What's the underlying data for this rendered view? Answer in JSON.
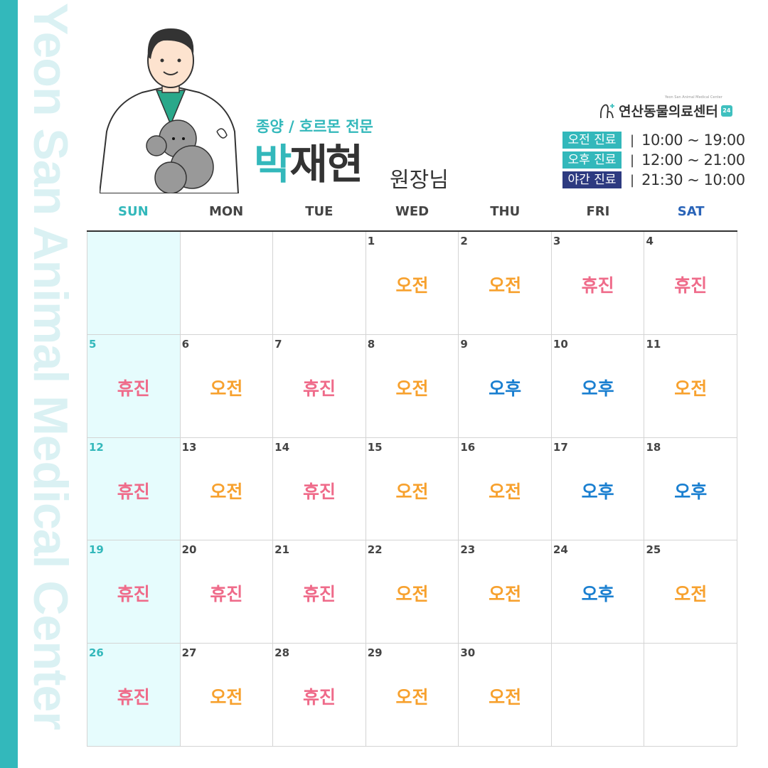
{
  "side_text": "Yeon San Animal Medical Center",
  "header": {
    "specialty": "종양 / 호르몬 전문",
    "name_first": "박",
    "name_rest": "재현",
    "title": "원장님"
  },
  "logo": {
    "small_text": "Yeon San Animal Medical Center",
    "name": "연산동물의료센터",
    "badge": "24"
  },
  "hours": [
    {
      "label": "오전 진료",
      "sep": "|",
      "time": "10:00 ~ 19:00",
      "color": "#33b8bb"
    },
    {
      "label": "오후 진료",
      "sep": "|",
      "time": "12:00 ~ 21:00",
      "color": "#33b8bb"
    },
    {
      "label": "야간 진료",
      "sep": "|",
      "time": "21:30 ~ 10:00",
      "color": "#2d3a80"
    }
  ],
  "weekdays": [
    "SUN",
    "MON",
    "TUE",
    "WED",
    "THU",
    "FRI",
    "SAT"
  ],
  "colors": {
    "am": "#f7a12e",
    "off": "#ef6b8a",
    "pm": "#1a7fd0",
    "accent": "#33b8bb"
  },
  "weeks": [
    [
      {
        "d": "",
        "s": ""
      },
      {
        "d": "",
        "s": ""
      },
      {
        "d": "",
        "s": ""
      },
      {
        "d": "1",
        "s": "오전"
      },
      {
        "d": "2",
        "s": "오전"
      },
      {
        "d": "3",
        "s": "휴진"
      },
      {
        "d": "4",
        "s": "휴진"
      }
    ],
    [
      {
        "d": "5",
        "s": "휴진"
      },
      {
        "d": "6",
        "s": "오전"
      },
      {
        "d": "7",
        "s": "휴진"
      },
      {
        "d": "8",
        "s": "오전"
      },
      {
        "d": "9",
        "s": "오후"
      },
      {
        "d": "10",
        "s": "오후"
      },
      {
        "d": "11",
        "s": "오전"
      }
    ],
    [
      {
        "d": "12",
        "s": "휴진"
      },
      {
        "d": "13",
        "s": "오전"
      },
      {
        "d": "14",
        "s": "휴진"
      },
      {
        "d": "15",
        "s": "오전"
      },
      {
        "d": "16",
        "s": "오전"
      },
      {
        "d": "17",
        "s": "오후"
      },
      {
        "d": "18",
        "s": "오후"
      }
    ],
    [
      {
        "d": "19",
        "s": "휴진"
      },
      {
        "d": "20",
        "s": "휴진"
      },
      {
        "d": "21",
        "s": "휴진"
      },
      {
        "d": "22",
        "s": "오전"
      },
      {
        "d": "23",
        "s": "오전"
      },
      {
        "d": "24",
        "s": "오후"
      },
      {
        "d": "25",
        "s": "오전"
      }
    ],
    [
      {
        "d": "26",
        "s": "휴진"
      },
      {
        "d": "27",
        "s": "오전"
      },
      {
        "d": "28",
        "s": "휴진"
      },
      {
        "d": "29",
        "s": "오전"
      },
      {
        "d": "30",
        "s": "오전"
      },
      {
        "d": "",
        "s": ""
      },
      {
        "d": "",
        "s": ""
      }
    ]
  ]
}
